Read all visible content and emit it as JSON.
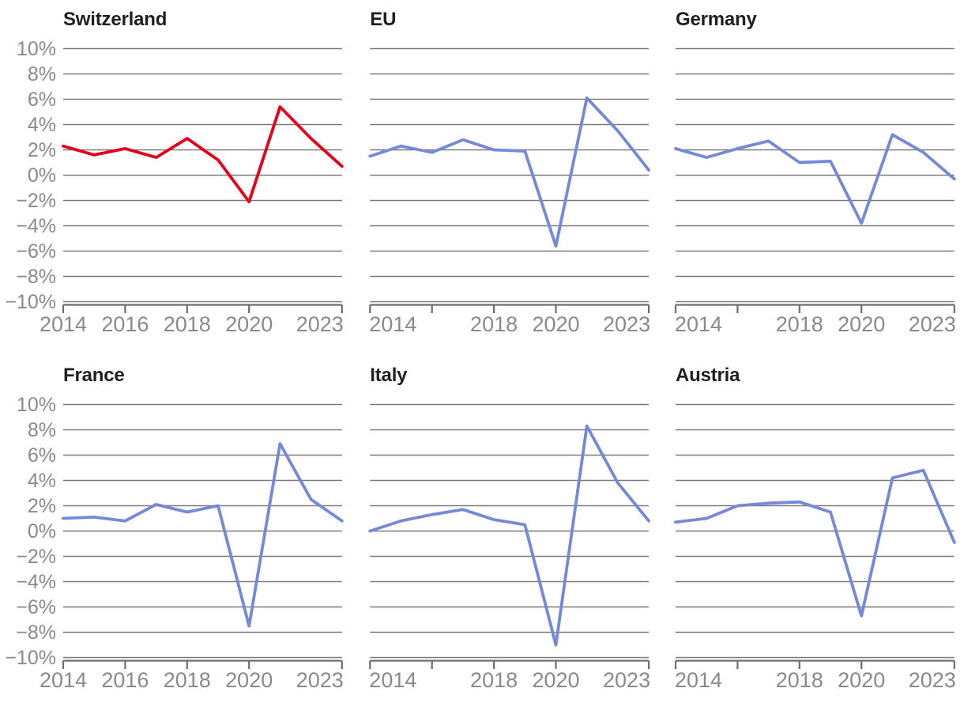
{
  "page": {
    "background": "#ffffff"
  },
  "colors": {
    "red_line": "#e2001a",
    "blue_line": "#7489d8",
    "gridline": "#7a7a7a",
    "axis": "#6e6e6e",
    "tick_label": "#8a8a8a",
    "title_text": "#1f1f1f"
  },
  "chart_data": {
    "type": "line",
    "layout": "2 rows x 3 columns small multiples",
    "x": [
      2014,
      2015,
      2016,
      2017,
      2018,
      2019,
      2020,
      2021,
      2022,
      2023
    ],
    "x_axis_tick_years": [
      2014,
      2016,
      2018,
      2020,
      2023
    ],
    "x_tick_labels_first_column": [
      "2014",
      "2016",
      "2018",
      "2020",
      "2023"
    ],
    "x_tick_labels_other_columns": [
      "2014",
      "2018",
      "2020",
      "2023"
    ],
    "ylim": [
      -10,
      10
    ],
    "y_tick_values": [
      10,
      8,
      6,
      4,
      2,
      0,
      -2,
      -4,
      -6,
      -8,
      -10
    ],
    "y_tick_labels": [
      "10%",
      "8%",
      "6%",
      "4%",
      "2%",
      "0%",
      "−2%",
      "−4%",
      "−6%",
      "−8%",
      "−10%"
    ],
    "y_axis_labels_shown": "first column only",
    "grid": true,
    "unit": "%",
    "charts": [
      {
        "title": "Switzerland",
        "series_color": "#e2001a",
        "values": [
          2.3,
          1.6,
          2.1,
          1.4,
          2.9,
          1.2,
          -2.1,
          5.4,
          2.9,
          0.7
        ]
      },
      {
        "title": "EU",
        "series_color": "#7489d8",
        "values": [
          1.5,
          2.3,
          1.8,
          2.8,
          2.0,
          1.9,
          -5.6,
          6.1,
          3.5,
          0.4
        ]
      },
      {
        "title": "Germany",
        "series_color": "#7489d8",
        "values": [
          2.1,
          1.4,
          2.1,
          2.7,
          1.0,
          1.1,
          -3.8,
          3.2,
          1.8,
          -0.3
        ]
      },
      {
        "title": "France",
        "series_color": "#7489d8",
        "values": [
          1.0,
          1.1,
          0.8,
          2.1,
          1.5,
          2.0,
          -7.5,
          6.9,
          2.5,
          0.8
        ]
      },
      {
        "title": "Italy",
        "series_color": "#7489d8",
        "values": [
          0.0,
          0.8,
          1.3,
          1.7,
          0.9,
          0.5,
          -9.0,
          8.3,
          3.8,
          0.8
        ]
      },
      {
        "title": "Austria",
        "series_color": "#7489d8",
        "values": [
          0.7,
          1.0,
          2.0,
          2.2,
          2.3,
          1.5,
          -6.7,
          4.2,
          4.8,
          -0.9
        ]
      }
    ]
  }
}
